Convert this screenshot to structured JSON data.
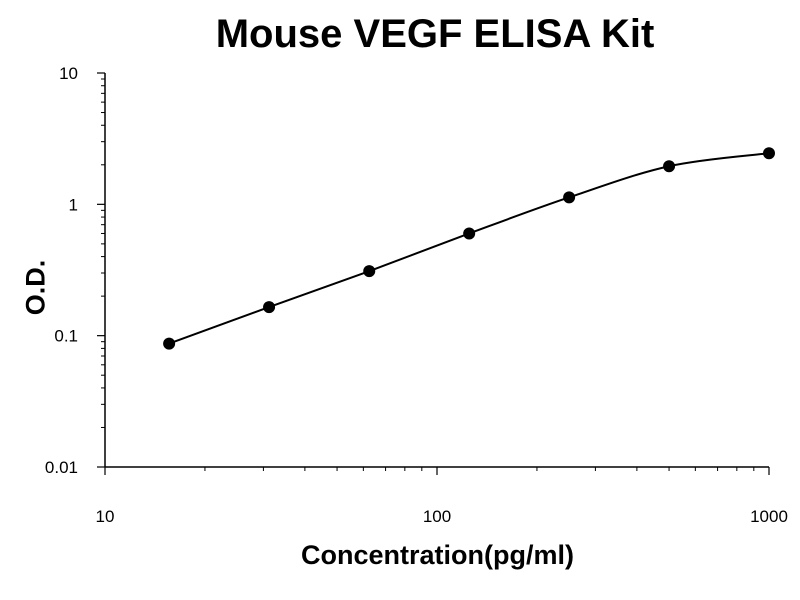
{
  "chart_data": {
    "type": "scatter",
    "title": "Mouse VEGF ELISA Kit",
    "xlabel": "Concentration(pg/ml)",
    "ylabel": "O.D.",
    "x_scale": "log",
    "y_scale": "log",
    "xlim": [
      10,
      1000
    ],
    "ylim": [
      0.01,
      10
    ],
    "x_ticks": [
      "10",
      "100",
      "1000"
    ],
    "y_ticks": [
      "0.01",
      "0.1",
      "1",
      "10"
    ],
    "grid": false,
    "legend": "none",
    "series": [
      {
        "x": [
          15.6,
          31.2,
          62.5,
          125,
          250,
          500,
          1000
        ],
        "y": [
          0.087,
          0.165,
          0.31,
          0.6,
          1.13,
          1.95,
          2.45
        ]
      }
    ],
    "trendline": "smooth curve through points",
    "colors": {
      "line": "#000000",
      "marker": "#000000",
      "axis": "#000000"
    }
  }
}
